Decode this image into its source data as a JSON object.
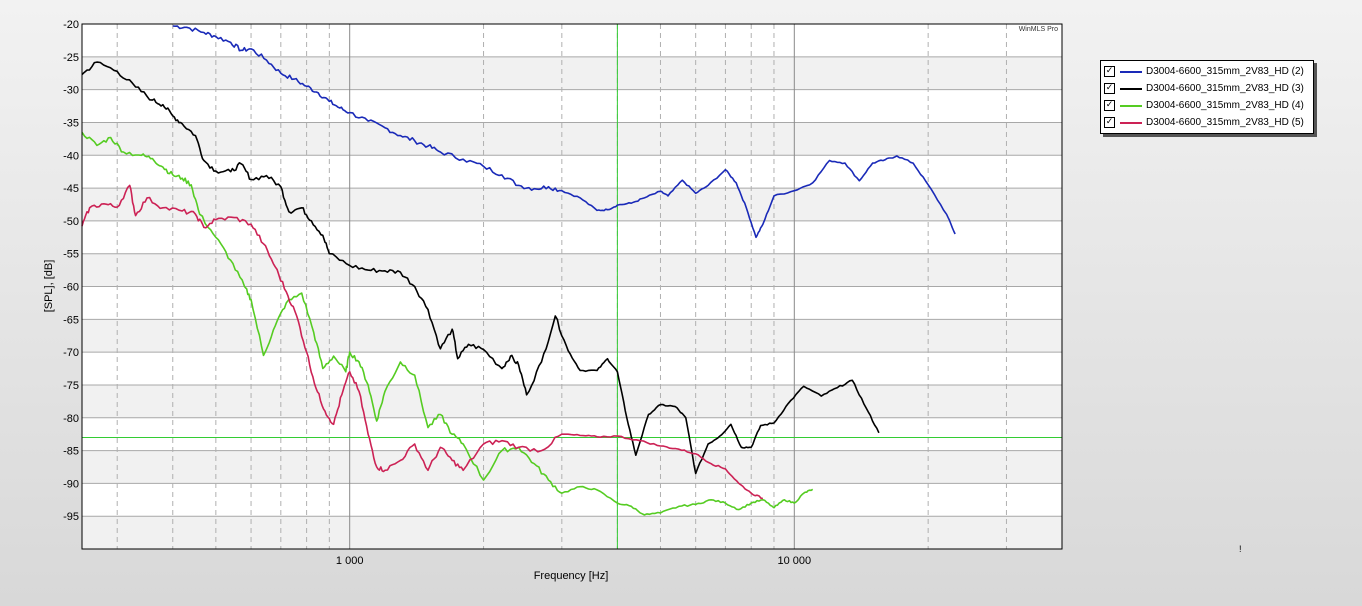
{
  "chart_data": {
    "type": "line",
    "watermark": "WinMLS Pro",
    "xlabel": "Frequency [Hz]",
    "ylabel": "[SPL], [dB]",
    "x_scale": "log",
    "xlim": [
      250,
      40000
    ],
    "ylim": [
      -100,
      -20
    ],
    "y_ticks": [
      -20,
      -25,
      -30,
      -35,
      -40,
      -45,
      -50,
      -55,
      -60,
      -65,
      -70,
      -75,
      -80,
      -85,
      -90,
      -95
    ],
    "y_tick_labels": [
      "-20",
      "-25",
      "-30",
      "-35",
      "-40",
      "-45",
      "-50",
      "-55",
      "-60",
      "-65",
      "-70",
      "-75",
      "-80",
      "-85",
      "-90",
      "-95"
    ],
    "x_tick_labels": [
      {
        "value": 1000,
        "label": "1 000"
      },
      {
        "value": 10000,
        "label": "10 000"
      }
    ],
    "grid": true,
    "legend_position": "right",
    "cursor": {
      "x": 4000,
      "y": -83
    },
    "series": [
      {
        "name": "D3004-6600_315mm_2V83_HD (2)",
        "color": "#1a2ab8",
        "checked": true,
        "points": [
          [
            400,
            -20.3
          ],
          [
            430,
            -20.5
          ],
          [
            470,
            -21.3
          ],
          [
            500,
            -21.9
          ],
          [
            540,
            -22.8
          ],
          [
            570,
            -24.0
          ],
          [
            600,
            -23.8
          ],
          [
            650,
            -25.5
          ],
          [
            700,
            -27.5
          ],
          [
            750,
            -28.4
          ],
          [
            800,
            -29.5
          ],
          [
            850,
            -30.5
          ],
          [
            900,
            -31.8
          ],
          [
            950,
            -32.8
          ],
          [
            1000,
            -33.5
          ],
          [
            1100,
            -34.8
          ],
          [
            1200,
            -35.8
          ],
          [
            1300,
            -37.0
          ],
          [
            1400,
            -37.8
          ],
          [
            1500,
            -38.6
          ],
          [
            1600,
            -39.5
          ],
          [
            1800,
            -40.6
          ],
          [
            2000,
            -41.7
          ],
          [
            2200,
            -43.0
          ],
          [
            2400,
            -44.6
          ],
          [
            2600,
            -45.1
          ],
          [
            2800,
            -44.8
          ],
          [
            3000,
            -45.4
          ],
          [
            3300,
            -46.5
          ],
          [
            3600,
            -48.4
          ],
          [
            3800,
            -48.3
          ],
          [
            4000,
            -47.6
          ],
          [
            4300,
            -47.3
          ],
          [
            4600,
            -46.5
          ],
          [
            5000,
            -45.5
          ],
          [
            5200,
            -46.2
          ],
          [
            5600,
            -43.8
          ],
          [
            6000,
            -45.8
          ],
          [
            6400,
            -44.6
          ],
          [
            7000,
            -42.2
          ],
          [
            7400,
            -44.2
          ],
          [
            7800,
            -48.0
          ],
          [
            8200,
            -52.5
          ],
          [
            8500,
            -50.5
          ],
          [
            9000,
            -46.2
          ],
          [
            10000,
            -45.4
          ],
          [
            11000,
            -44.2
          ],
          [
            12000,
            -40.8
          ],
          [
            13000,
            -41.2
          ],
          [
            14000,
            -43.9
          ],
          [
            15000,
            -41.2
          ],
          [
            16000,
            -40.7
          ],
          [
            17000,
            -40.1
          ],
          [
            18500,
            -41.2
          ],
          [
            20000,
            -44.5
          ],
          [
            22000,
            -49.0
          ],
          [
            23000,
            -52.0
          ]
        ]
      },
      {
        "name": "D3004-6600_315mm_2V83_HD (3)",
        "color": "#000000",
        "checked": true,
        "points": [
          [
            250,
            -27.7
          ],
          [
            270,
            -25.8
          ],
          [
            300,
            -27.2
          ],
          [
            330,
            -29.6
          ],
          [
            360,
            -31.6
          ],
          [
            380,
            -32.3
          ],
          [
            400,
            -34.0
          ],
          [
            420,
            -35.2
          ],
          [
            450,
            -37.0
          ],
          [
            470,
            -40.8
          ],
          [
            500,
            -42.4
          ],
          [
            540,
            -42.5
          ],
          [
            570,
            -41.3
          ],
          [
            600,
            -43.7
          ],
          [
            650,
            -43.1
          ],
          [
            700,
            -44.8
          ],
          [
            730,
            -48.6
          ],
          [
            780,
            -48.0
          ],
          [
            820,
            -50.0
          ],
          [
            870,
            -52.2
          ],
          [
            900,
            -55.0
          ],
          [
            1000,
            -56.8
          ],
          [
            1100,
            -57.5
          ],
          [
            1200,
            -57.6
          ],
          [
            1300,
            -57.8
          ],
          [
            1400,
            -60.0
          ],
          [
            1500,
            -63.5
          ],
          [
            1600,
            -69.5
          ],
          [
            1700,
            -66.5
          ],
          [
            1750,
            -71.0
          ],
          [
            1850,
            -68.8
          ],
          [
            2000,
            -69.6
          ],
          [
            2200,
            -72.5
          ],
          [
            2300,
            -70.6
          ],
          [
            2400,
            -72.0
          ],
          [
            2500,
            -76.5
          ],
          [
            2700,
            -71.5
          ],
          [
            2900,
            -64.5
          ],
          [
            3100,
            -69.8
          ],
          [
            3300,
            -72.8
          ],
          [
            3600,
            -72.8
          ],
          [
            3800,
            -71.0
          ],
          [
            4000,
            -73.0
          ],
          [
            4200,
            -80.0
          ],
          [
            4400,
            -85.7
          ],
          [
            4700,
            -79.5
          ],
          [
            5000,
            -78.0
          ],
          [
            5400,
            -78.3
          ],
          [
            5700,
            -80.0
          ],
          [
            6000,
            -88.5
          ],
          [
            6400,
            -84.0
          ],
          [
            6800,
            -82.8
          ],
          [
            7200,
            -81.0
          ],
          [
            7600,
            -84.5
          ],
          [
            8000,
            -84.5
          ],
          [
            8400,
            -81.2
          ],
          [
            9000,
            -80.8
          ],
          [
            9700,
            -77.8
          ],
          [
            10500,
            -75.2
          ],
          [
            11500,
            -76.7
          ],
          [
            12500,
            -75.4
          ],
          [
            13500,
            -74.3
          ],
          [
            14500,
            -78.5
          ],
          [
            15500,
            -82.3
          ]
        ]
      },
      {
        "name": "D3004-6600_315mm_2V83_HD (4)",
        "color": "#55cc22",
        "checked": true,
        "points": [
          [
            250,
            -36.5
          ],
          [
            270,
            -38.5
          ],
          [
            290,
            -37.3
          ],
          [
            310,
            -39.5
          ],
          [
            340,
            -40.0
          ],
          [
            360,
            -40.5
          ],
          [
            380,
            -41.8
          ],
          [
            400,
            -43.0
          ],
          [
            420,
            -43.5
          ],
          [
            440,
            -44.5
          ],
          [
            460,
            -49.0
          ],
          [
            500,
            -52.5
          ],
          [
            540,
            -56.0
          ],
          [
            580,
            -60.0
          ],
          [
            600,
            -62.0
          ],
          [
            640,
            -70.5
          ],
          [
            680,
            -66.0
          ],
          [
            720,
            -62.5
          ],
          [
            780,
            -61.0
          ],
          [
            830,
            -67.0
          ],
          [
            870,
            -72.5
          ],
          [
            920,
            -70.6
          ],
          [
            980,
            -73.0
          ],
          [
            1000,
            -70.0
          ],
          [
            1050,
            -71.5
          ],
          [
            1100,
            -75.0
          ],
          [
            1150,
            -80.5
          ],
          [
            1200,
            -76.0
          ],
          [
            1300,
            -71.5
          ],
          [
            1400,
            -73.5
          ],
          [
            1500,
            -81.5
          ],
          [
            1600,
            -79.5
          ],
          [
            1700,
            -82.5
          ],
          [
            1800,
            -84.0
          ],
          [
            2000,
            -89.5
          ],
          [
            2200,
            -85.0
          ],
          [
            2400,
            -84.5
          ],
          [
            2600,
            -87.0
          ],
          [
            2800,
            -89.5
          ],
          [
            3000,
            -91.5
          ],
          [
            3300,
            -90.5
          ],
          [
            3600,
            -91.0
          ],
          [
            4000,
            -93.0
          ],
          [
            4300,
            -93.5
          ],
          [
            4600,
            -94.8
          ],
          [
            5000,
            -94.5
          ],
          [
            5500,
            -93.5
          ],
          [
            6000,
            -93.2
          ],
          [
            6500,
            -92.5
          ],
          [
            7000,
            -93.0
          ],
          [
            7500,
            -94.0
          ],
          [
            8000,
            -93.0
          ],
          [
            8500,
            -92.5
          ],
          [
            9000,
            -93.7
          ],
          [
            9500,
            -92.5
          ],
          [
            10000,
            -93.0
          ],
          [
            10500,
            -91.5
          ],
          [
            11000,
            -90.9
          ]
        ]
      },
      {
        "name": "D3004-6600_315mm_2V83_HD (5)",
        "color": "#cc2255",
        "checked": true,
        "points": [
          [
            250,
            -50.8
          ],
          [
            260,
            -48.0
          ],
          [
            280,
            -47.4
          ],
          [
            300,
            -47.9
          ],
          [
            320,
            -44.6
          ],
          [
            330,
            -49.2
          ],
          [
            350,
            -46.5
          ],
          [
            380,
            -48.0
          ],
          [
            420,
            -48.5
          ],
          [
            450,
            -49.0
          ],
          [
            470,
            -51.0
          ],
          [
            500,
            -49.8
          ],
          [
            550,
            -49.5
          ],
          [
            600,
            -50.5
          ],
          [
            640,
            -53.5
          ],
          [
            680,
            -57.0
          ],
          [
            720,
            -60.8
          ],
          [
            760,
            -64.5
          ],
          [
            800,
            -70.0
          ],
          [
            840,
            -75.5
          ],
          [
            880,
            -79.0
          ],
          [
            920,
            -81.0
          ],
          [
            960,
            -76.5
          ],
          [
            1000,
            -73.0
          ],
          [
            1050,
            -76.0
          ],
          [
            1100,
            -82.5
          ],
          [
            1150,
            -87.5
          ],
          [
            1200,
            -88.0
          ],
          [
            1300,
            -86.5
          ],
          [
            1400,
            -84.0
          ],
          [
            1500,
            -88.0
          ],
          [
            1600,
            -84.5
          ],
          [
            1700,
            -86.5
          ],
          [
            1800,
            -88.0
          ],
          [
            2000,
            -84.0
          ],
          [
            2200,
            -83.5
          ],
          [
            2400,
            -84.5
          ],
          [
            2700,
            -85.0
          ],
          [
            3000,
            -82.5
          ],
          [
            3300,
            -82.7
          ],
          [
            3600,
            -82.9
          ],
          [
            4000,
            -82.8
          ],
          [
            4500,
            -83.5
          ],
          [
            5000,
            -84.3
          ],
          [
            5500,
            -84.8
          ],
          [
            6000,
            -85.5
          ],
          [
            6500,
            -87.0
          ],
          [
            7000,
            -87.8
          ],
          [
            7500,
            -90.0
          ],
          [
            8000,
            -91.5
          ],
          [
            8500,
            -92.3
          ]
        ]
      }
    ]
  },
  "stray_mark": "!"
}
